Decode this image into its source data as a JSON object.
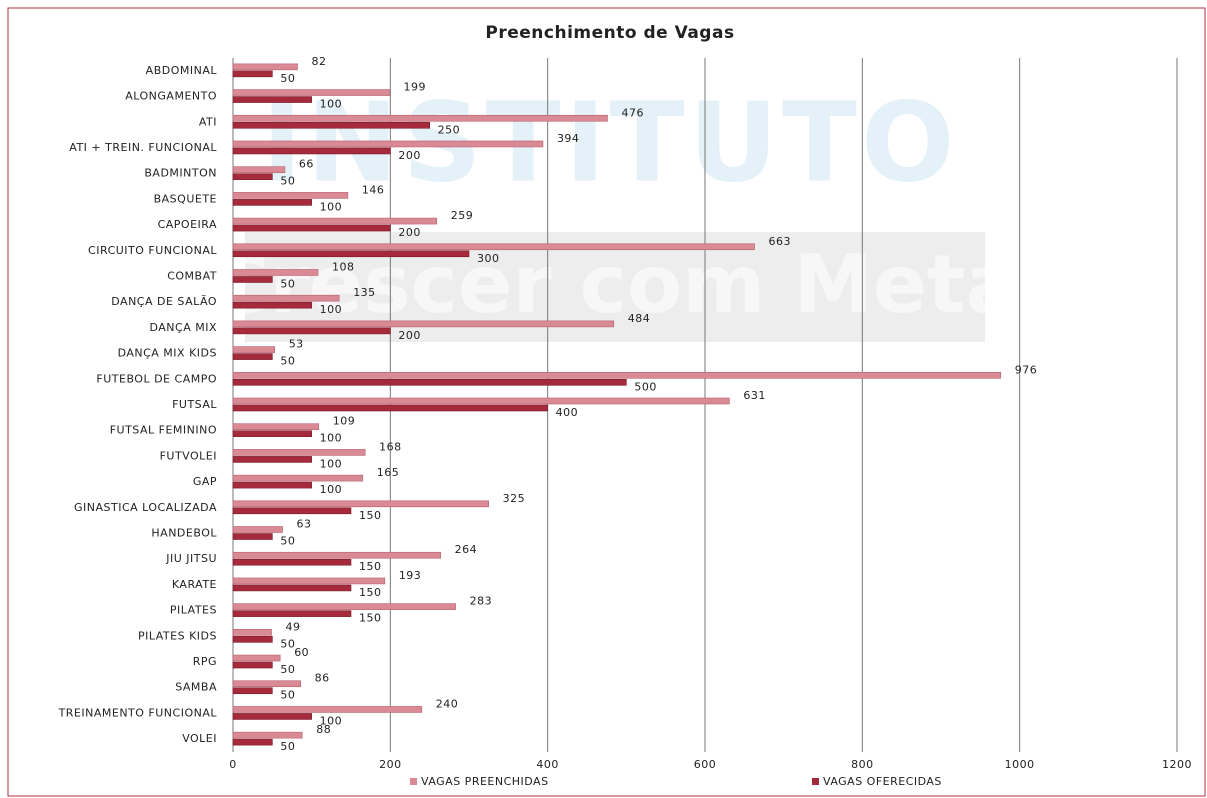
{
  "chart_data": {
    "type": "hbar",
    "title": "Preenchimento de Vagas",
    "watermark": [
      "INSTITUTO",
      "Crescer com Meta"
    ],
    "categories": [
      "ABDOMINAL",
      "ALONGAMENTO",
      "ATI",
      "ATI + TREIN. FUNCIONAL",
      "BADMINTON",
      "BASQUETE",
      "CAPOEIRA",
      "CIRCUITO FUNCIONAL",
      "COMBAT",
      "DANÇA DE SALÃO",
      "DANÇA MIX",
      "DANÇA MIX KIDS",
      "FUTEBOL DE CAMPO",
      "FUTSAL",
      "FUTSAL FEMININO",
      "FUTVOLEI",
      "GAP",
      "GINASTICA LOCALIZADA",
      "HANDEBOL",
      "JIU JITSU",
      "KARATE",
      "PILATES",
      "PILATES KIDS",
      "RPG",
      "SAMBA",
      "TREINAMENTO FUNCIONAL",
      "VOLEI"
    ],
    "series": [
      {
        "name": "VAGAS PREENCHIDAS",
        "color": "#d98a94",
        "values": [
          82,
          199,
          476,
          394,
          66,
          146,
          259,
          663,
          108,
          135,
          484,
          53,
          976,
          631,
          109,
          168,
          165,
          325,
          63,
          264,
          193,
          283,
          49,
          60,
          86,
          240,
          88
        ]
      },
      {
        "name": "VAGAS OFERECIDAS",
        "color": "#a52a3c",
        "values": [
          50,
          100,
          250,
          200,
          50,
          100,
          200,
          300,
          50,
          100,
          200,
          50,
          500,
          400,
          100,
          100,
          100,
          150,
          50,
          150,
          150,
          150,
          50,
          50,
          50,
          100,
          50
        ]
      }
    ],
    "xlim": [
      0,
      1200
    ],
    "xticks": [
      0,
      200,
      400,
      600,
      800,
      1000,
      1200
    ],
    "grid": true,
    "legend": "bottom"
  }
}
